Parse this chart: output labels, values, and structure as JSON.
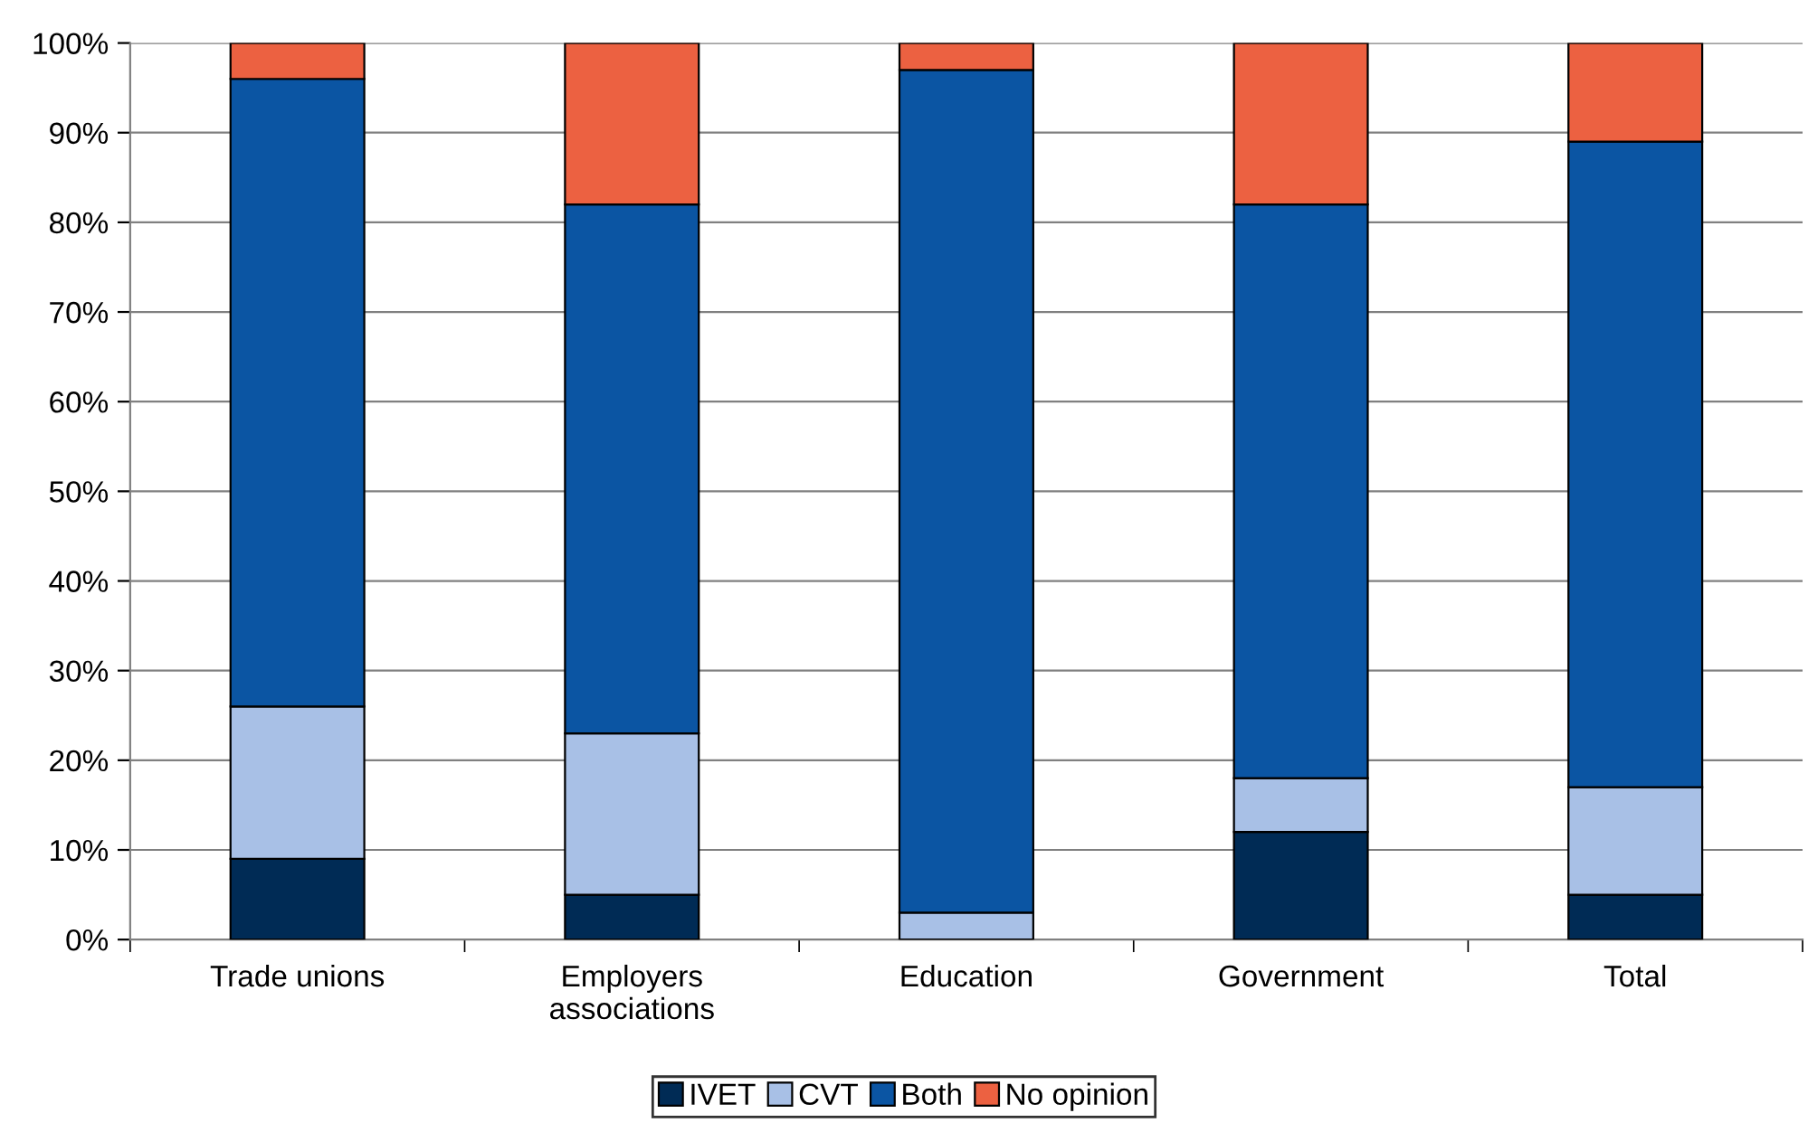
{
  "chart_data": {
    "type": "bar",
    "stacked": true,
    "categories": [
      "Trade unions",
      "Employers\nassociations",
      "Education",
      "Government",
      "Total"
    ],
    "series": [
      {
        "name": "IVET",
        "color": "#002b55",
        "values": [
          9,
          5,
          0,
          12,
          5
        ]
      },
      {
        "name": "CVT",
        "color": "#a8c0e6",
        "values": [
          17,
          18,
          3,
          6,
          12
        ]
      },
      {
        "name": "Both",
        "color": "#0b55a3",
        "values": [
          70,
          59,
          94,
          64,
          72
        ]
      },
      {
        "name": "No opinion",
        "color": "#ec6141",
        "values": [
          4,
          18,
          3,
          18,
          11
        ]
      }
    ],
    "ylim": [
      0,
      100
    ],
    "yticks": [
      {
        "value": 0,
        "label": "0%"
      },
      {
        "value": 10,
        "label": "10%"
      },
      {
        "value": 20,
        "label": "20%"
      },
      {
        "value": 30,
        "label": "30%"
      },
      {
        "value": 40,
        "label": "40%"
      },
      {
        "value": 50,
        "label": "50%"
      },
      {
        "value": 60,
        "label": "60%"
      },
      {
        "value": 70,
        "label": "70%"
      },
      {
        "value": 80,
        "label": "80%"
      },
      {
        "value": 90,
        "label": "90%"
      },
      {
        "value": 100,
        "label": "100%"
      }
    ],
    "grid": "y",
    "legend": "bottom"
  }
}
